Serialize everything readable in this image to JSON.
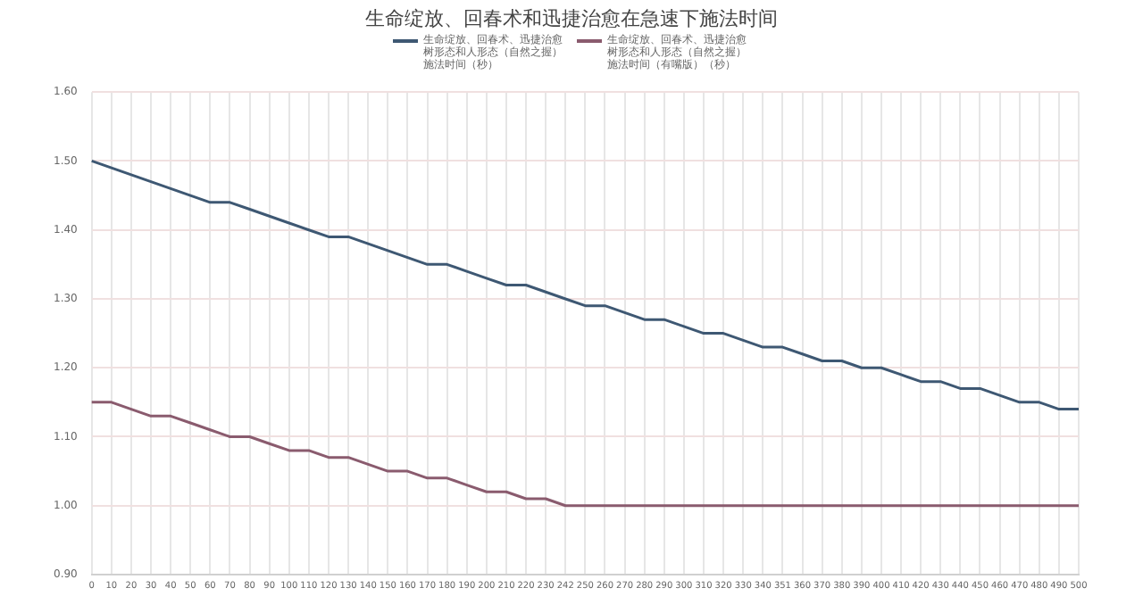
{
  "chart_data": {
    "type": "line",
    "title": "生命绽放、回春术和迅捷治愈在急速下施法时间",
    "categories": [
      "0",
      "10",
      "20",
      "30",
      "40",
      "50",
      "60",
      "70",
      "80",
      "90",
      "100",
      "110",
      "120",
      "130",
      "140",
      "150",
      "160",
      "170",
      "180",
      "190",
      "200",
      "210",
      "220",
      "230",
      "242",
      "250",
      "260",
      "270",
      "280",
      "290",
      "300",
      "310",
      "320",
      "330",
      "340",
      "351",
      "360",
      "370",
      "380",
      "390",
      "400",
      "410",
      "420",
      "430",
      "440",
      "450",
      "460",
      "470",
      "480",
      "490",
      "500"
    ],
    "series": [
      {
        "name": "生命绽放、回春术、迅捷治愈树形态和人形态（自然之握）施法时间（秒）",
        "color": "#3e5873",
        "values": [
          1.5,
          1.49,
          1.48,
          1.47,
          1.46,
          1.45,
          1.44,
          1.44,
          1.43,
          1.42,
          1.41,
          1.4,
          1.39,
          1.39,
          1.38,
          1.37,
          1.36,
          1.35,
          1.35,
          1.34,
          1.33,
          1.32,
          1.32,
          1.31,
          1.3,
          1.29,
          1.29,
          1.28,
          1.27,
          1.27,
          1.26,
          1.25,
          1.25,
          1.24,
          1.23,
          1.23,
          1.22,
          1.21,
          1.21,
          1.2,
          1.2,
          1.19,
          1.18,
          1.18,
          1.17,
          1.17,
          1.16,
          1.15,
          1.15,
          1.14,
          1.14
        ]
      },
      {
        "name": "生命绽放、回春术、迅捷治愈树形态和人形态（自然之握）施法时间（有嘴版）（秒）",
        "color": "#8a5b6e",
        "values": [
          1.15,
          1.15,
          1.14,
          1.13,
          1.13,
          1.12,
          1.11,
          1.1,
          1.1,
          1.09,
          1.08,
          1.08,
          1.07,
          1.07,
          1.06,
          1.05,
          1.05,
          1.04,
          1.04,
          1.03,
          1.02,
          1.02,
          1.01,
          1.01,
          1.0,
          1.0,
          1.0,
          1.0,
          1.0,
          1.0,
          1.0,
          1.0,
          1.0,
          1.0,
          1.0,
          1.0,
          1.0,
          1.0,
          1.0,
          1.0,
          1.0,
          1.0,
          1.0,
          1.0,
          1.0,
          1.0,
          1.0,
          1.0,
          1.0,
          1.0,
          1.0
        ]
      }
    ],
    "ylim": [
      0.9,
      1.6
    ],
    "yticks": [
      {
        "value": 0.9,
        "label": "0.90"
      },
      {
        "value": 1.0,
        "label": "1.00"
      },
      {
        "value": 1.1,
        "label": "1.10"
      },
      {
        "value": 1.2,
        "label": "1.20"
      },
      {
        "value": 1.3,
        "label": "1.30"
      },
      {
        "value": 1.4,
        "label": "1.40"
      },
      {
        "value": 1.5,
        "label": "1.50"
      },
      {
        "value": 1.6,
        "label": "1.60"
      }
    ],
    "grid": true,
    "legend": "top",
    "marker": "none",
    "line_style": "solid"
  }
}
